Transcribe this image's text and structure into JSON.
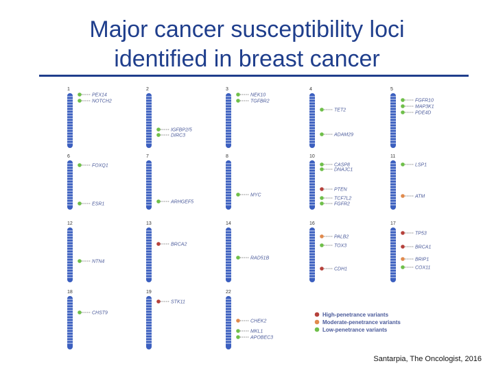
{
  "slide": {
    "title_line1": "Major cancer susceptibility loci",
    "title_line2": "identified in breast cancer",
    "credit": "Santarpia, The Oncologist, 2016"
  },
  "colors": {
    "title": "#1f3e8c",
    "chromosome": "#3b5fbf",
    "band": "#dfe6f5",
    "high": "#b5413b",
    "moderate": "#e08a4d",
    "low": "#6fbf4a",
    "gene_text": "#4a5a9a"
  },
  "legend": [
    {
      "label": "High-penetrance variants",
      "class": "high"
    },
    {
      "label": "Moderate-penetrance variants",
      "class": "moderate"
    },
    {
      "label": "Low-penetrance variants",
      "class": "low"
    }
  ],
  "chromosomes": [
    {
      "label": "1",
      "genes": [
        {
          "name": "PEX14",
          "class": "low"
        },
        {
          "name": "NOTCH2",
          "class": "low"
        }
      ]
    },
    {
      "label": "2",
      "genes": [
        {
          "name": "IGFBP2/5",
          "class": "low"
        },
        {
          "name": "DIRC3",
          "class": "low"
        }
      ]
    },
    {
      "label": "3",
      "genes": [
        {
          "name": "NEK10",
          "class": "low"
        },
        {
          "name": "TGFBR2",
          "class": "low"
        }
      ]
    },
    {
      "label": "4",
      "genes": [
        {
          "name": "TET2",
          "class": "low"
        },
        {
          "name": "ADAM29",
          "class": "low"
        }
      ]
    },
    {
      "label": "5",
      "genes": [
        {
          "name": "FGFR10",
          "class": "low"
        },
        {
          "name": "MAP3K1",
          "class": "low"
        },
        {
          "name": "PDE4D",
          "class": "low"
        }
      ]
    },
    {
      "label": "6",
      "genes": [
        {
          "name": "FOXQ1",
          "class": "low"
        },
        {
          "name": "ESR1",
          "class": "low"
        }
      ]
    },
    {
      "label": "7",
      "genes": [
        {
          "name": "ARHGEF5",
          "class": "low"
        }
      ]
    },
    {
      "label": "8",
      "genes": [
        {
          "name": "MYC",
          "class": "low"
        }
      ]
    },
    {
      "label": "10",
      "genes": [
        {
          "name": "CASP8",
          "class": "low"
        },
        {
          "name": "DNAJC1",
          "class": "low"
        },
        {
          "name": "PTEN",
          "class": "high"
        },
        {
          "name": "TCF7L2",
          "class": "low"
        },
        {
          "name": "FGFR2",
          "class": "low"
        }
      ]
    },
    {
      "label": "11",
      "genes": [
        {
          "name": "LSP1",
          "class": "low"
        },
        {
          "name": "ATM",
          "class": "moderate"
        }
      ]
    },
    {
      "label": "12",
      "genes": [
        {
          "name": "NTN4",
          "class": "low"
        }
      ]
    },
    {
      "label": "13",
      "genes": [
        {
          "name": "BRCA2",
          "class": "high"
        }
      ]
    },
    {
      "label": "14",
      "genes": [
        {
          "name": "RAD51B",
          "class": "low"
        }
      ]
    },
    {
      "label": "16",
      "genes": [
        {
          "name": "PALB2",
          "class": "moderate"
        },
        {
          "name": "TOX3",
          "class": "low"
        },
        {
          "name": "CDH1",
          "class": "high"
        }
      ]
    },
    {
      "label": "17",
      "genes": [
        {
          "name": "TP53",
          "class": "high"
        },
        {
          "name": "BRCA1",
          "class": "high"
        },
        {
          "name": "BRIP1",
          "class": "moderate"
        },
        {
          "name": "COX11",
          "class": "low"
        }
      ]
    },
    {
      "label": "18",
      "genes": [
        {
          "name": "CHST9",
          "class": "low"
        }
      ]
    },
    {
      "label": "19",
      "genes": [
        {
          "name": "STK11",
          "class": "high"
        }
      ]
    },
    {
      "label": "22",
      "genes": [
        {
          "name": "CHEK2",
          "class": "moderate"
        },
        {
          "name": "MKL1",
          "class": "low"
        },
        {
          "name": "APOBEC3",
          "class": "low"
        }
      ]
    }
  ]
}
